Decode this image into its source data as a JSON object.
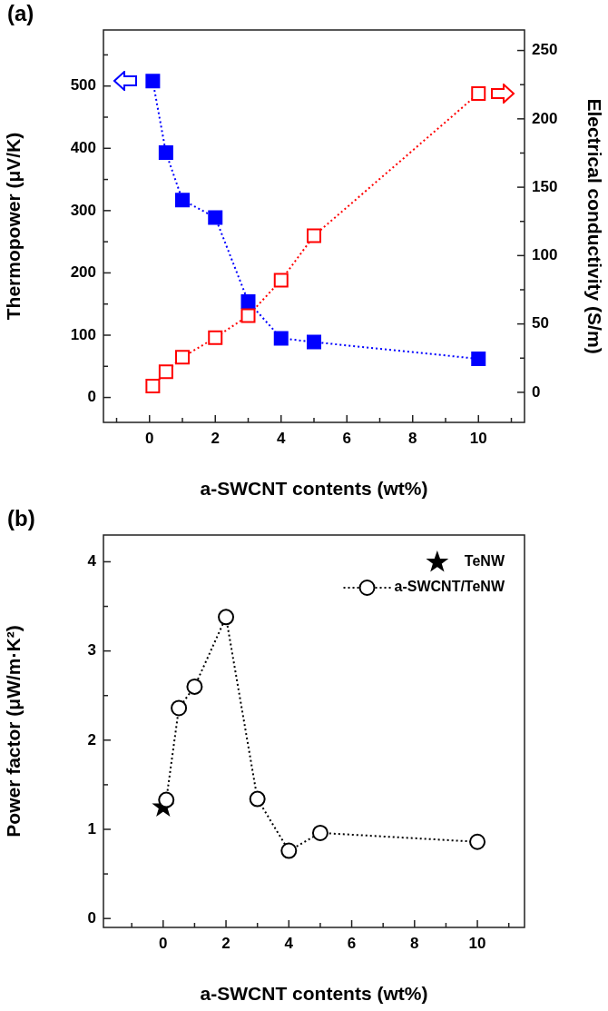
{
  "chart_data": [
    {
      "type": "line",
      "title": "(a)",
      "xlabel": "a-SWCNT contents (wt%)",
      "ylabel": "Thermopower (μV/K)",
      "y2label": "Electrical conductivity (S/m)",
      "legend": false,
      "xlim": [
        -1.4,
        11.4
      ],
      "xticks": [
        {
          "value": -1,
          "label": null
        },
        0,
        {
          "value": 1,
          "label": null
        },
        2,
        {
          "value": 3,
          "label": null
        },
        4,
        {
          "value": 5,
          "label": null
        },
        6,
        {
          "value": 7,
          "label": null
        },
        8,
        {
          "value": 9,
          "label": null
        },
        10,
        {
          "value": 11,
          "label": null
        }
      ],
      "ylim": [
        -40,
        590
      ],
      "yticks": [
        0,
        {
          "value": 50,
          "label": null
        },
        100,
        {
          "value": 150,
          "label": null
        },
        200,
        {
          "value": 250,
          "label": null
        },
        300,
        {
          "value": 350,
          "label": null
        },
        400,
        {
          "value": 450,
          "label": null
        },
        500,
        {
          "value": 550,
          "label": null
        }
      ],
      "y2lim": [
        -22,
        265
      ],
      "y2ticks": [
        0,
        {
          "value": 25,
          "label": null
        },
        50,
        {
          "value": 75,
          "label": null
        },
        100,
        {
          "value": 125,
          "label": null
        },
        150,
        {
          "value": 175,
          "label": null
        },
        200,
        {
          "value": 225,
          "label": null
        },
        250
      ],
      "series": [
        {
          "type": "line",
          "axis": "y",
          "marker": "square",
          "line_style": "dotted",
          "color": "#0000ff",
          "x": [
            0.1,
            0.5,
            1,
            2,
            3,
            4,
            5,
            10
          ],
          "values": [
            508,
            393,
            317,
            289,
            154,
            95,
            89,
            62
          ]
        },
        {
          "type": "line",
          "axis": "y2",
          "marker": "square",
          "line_style": "dotted",
          "color": "#ff0000",
          "x": [
            0.1,
            0.5,
            1,
            2,
            3,
            4,
            5,
            10
          ],
          "values": [
            4.5,
            15,
            25.6,
            40,
            56,
            82,
            114.5,
            218.5
          ]
        }
      ]
    },
    {
      "type": "line",
      "title": "(b)",
      "xlabel": "a-SWCNT contents (wt%)",
      "ylabel": "Power factor (μW/m·K²)",
      "legend": "top right",
      "xlim": [
        -1.9,
        11.5
      ],
      "xticks": [
        {
          "value": -1,
          "label": null
        },
        0,
        {
          "value": 1,
          "label": null
        },
        2,
        {
          "value": 3,
          "label": null
        },
        4,
        {
          "value": 5,
          "label": null
        },
        6,
        {
          "value": 7,
          "label": null
        },
        8,
        {
          "value": 9,
          "label": null
        },
        10,
        {
          "value": 11,
          "label": null
        }
      ],
      "ylim": [
        -0.1,
        4.3
      ],
      "yticks": [
        0,
        {
          "value": 0.5,
          "label": null
        },
        1,
        {
          "value": 1.5,
          "label": null
        },
        2,
        {
          "value": 2.5,
          "label": null
        },
        3,
        {
          "value": 3.5,
          "label": null
        },
        4
      ],
      "series": [
        {
          "name": "TeNW",
          "type": "scatter",
          "marker": "star",
          "color": "#000000",
          "x": [
            0
          ],
          "values": [
            1.25
          ]
        },
        {
          "name": "a-SWCNT/TeNW",
          "type": "line",
          "marker": "circle",
          "line_style": "dotted",
          "color": "#000000",
          "x": [
            0.1,
            0.5,
            1,
            2,
            3,
            4,
            5,
            10
          ],
          "values": [
            1.33,
            2.36,
            2.6,
            3.38,
            1.34,
            0.76,
            0.96,
            0.86
          ]
        }
      ]
    }
  ]
}
